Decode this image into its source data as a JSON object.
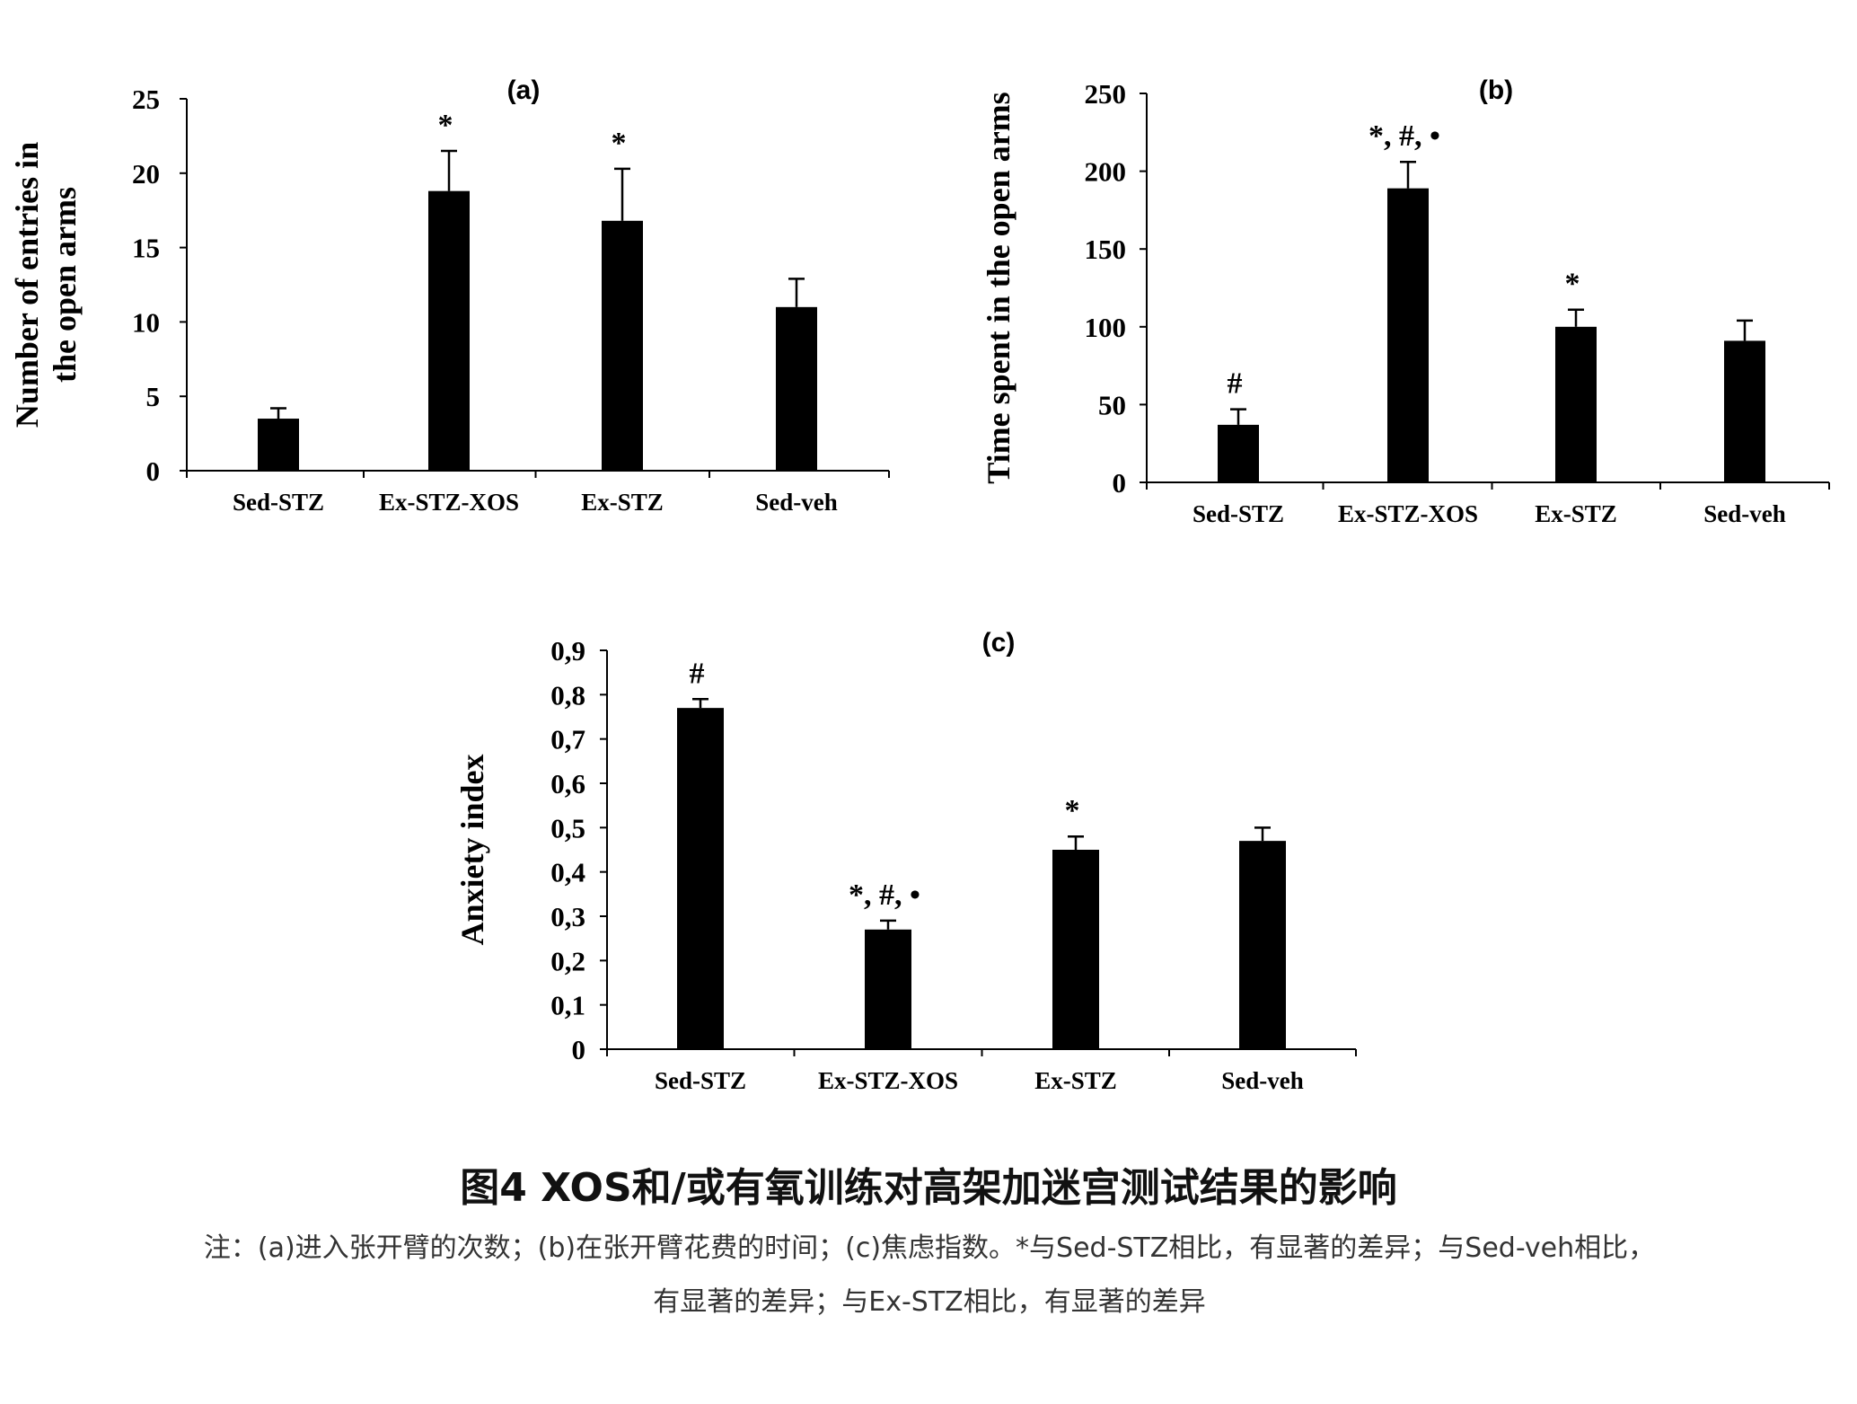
{
  "chart_data": [
    {
      "type": "bar",
      "panel": "(a)",
      "categories": [
        "Sed-STZ",
        "Ex-STZ-XOS",
        "Ex-STZ",
        "Sed-veh"
      ],
      "values": [
        3.5,
        18.8,
        16.8,
        11.0
      ],
      "errors": [
        0.7,
        2.7,
        3.5,
        1.9
      ],
      "significance": [
        "",
        "*",
        "*",
        ""
      ],
      "ylabel": "Number of entries in the open arms",
      "ylim": [
        0,
        25
      ],
      "yticks": [
        0,
        5,
        10,
        15,
        20,
        25
      ],
      "ytick_labels": [
        "0",
        "5",
        "10",
        "15",
        "20",
        "25"
      ]
    },
    {
      "type": "bar",
      "panel": "(b)",
      "categories": [
        "Sed-STZ",
        "Ex-STZ-XOS",
        "Ex-STZ",
        "Sed-veh"
      ],
      "values": [
        37,
        189,
        100,
        91
      ],
      "errors": [
        10,
        17,
        11,
        13
      ],
      "significance": [
        "#",
        "*, #, •",
        "*",
        ""
      ],
      "ylabel": "Time spent in the open arms",
      "ylim": [
        0,
        250
      ],
      "yticks": [
        0,
        50,
        100,
        150,
        200,
        250
      ],
      "ytick_labels": [
        "0",
        "50",
        "100",
        "150",
        "200",
        "250"
      ]
    },
    {
      "type": "bar",
      "panel": "(c)",
      "categories": [
        "Sed-STZ",
        "Ex-STZ-XOS",
        "Ex-STZ",
        "Sed-veh"
      ],
      "values": [
        0.77,
        0.27,
        0.45,
        0.47
      ],
      "errors": [
        0.02,
        0.02,
        0.03,
        0.03
      ],
      "significance": [
        "#",
        "*, #, •",
        "*",
        ""
      ],
      "ylabel": "Anxiety index",
      "ylim": [
        0,
        0.9
      ],
      "yticks": [
        0,
        0.1,
        0.2,
        0.3,
        0.4,
        0.5,
        0.6,
        0.7,
        0.8,
        0.9
      ],
      "ytick_labels": [
        "0",
        "0,1",
        "0,2",
        "0,3",
        "0,4",
        "0,5",
        "0,6",
        "0,7",
        "0,8",
        "0,9"
      ]
    }
  ],
  "caption": {
    "title": "图4 XOS和/或有氧训练对高架加迷宫测试结果的影响",
    "note_line1": "注：(a)进入张开臂的次数；(b)在张开臂花费的时间；(c)焦虑指数。*与Sed-STZ相比，有显著的差异；与Sed-veh相比，",
    "note_line2": "有显著的差异；与Ex-STZ相比，有显著的差异"
  },
  "colors": {
    "bars": "#000000",
    "axes": "#000000",
    "caption_title": "#111111",
    "caption_note": "#333333"
  }
}
